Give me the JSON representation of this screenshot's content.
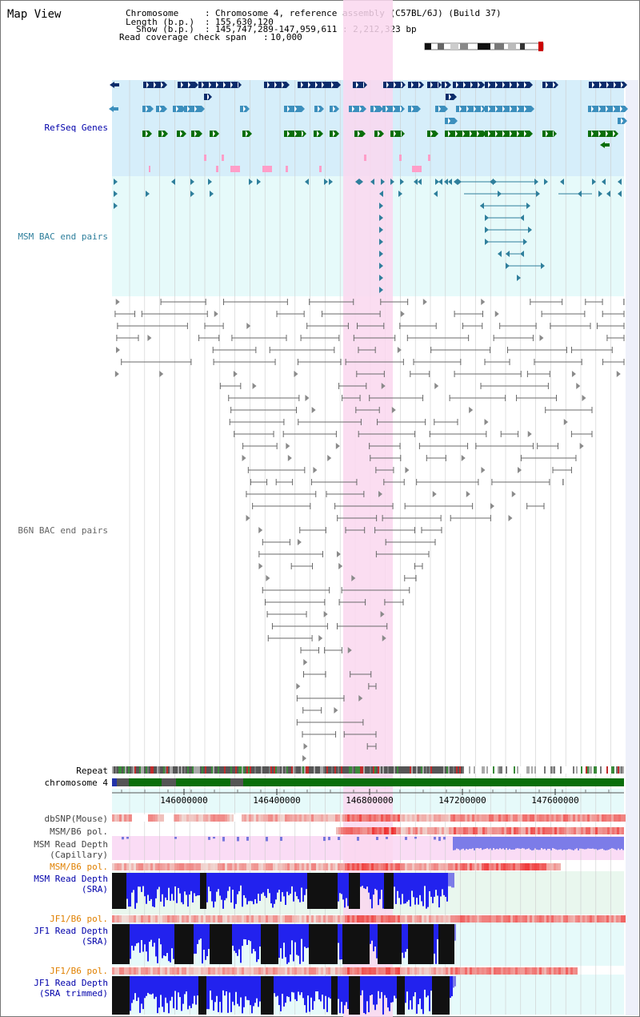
{
  "title": "Map View",
  "info": {
    "chromosome_key": "Chromosome",
    "chromosome_val": "Chromosome 4, reference assembly (C57BL/6J) (Build 37)",
    "length_key": "Length (b.p.)",
    "length_val": "155,630,120",
    "show_key": "Show (b.p.)",
    "show_val": "145,747,289-147,959,611 : 2,212,323 bp",
    "coverage_key": "Read coverage check span",
    "coverage_val": "10,000"
  },
  "tracks": {
    "refseq": "RefSeq Genes",
    "msm_bac": "MSM BAC end pairs",
    "b6n_bac": "B6N BAC end pairs",
    "repeat": "Repeat",
    "chromosome": "chromosome 4",
    "dbsnp": "dbSNP(Mouse)",
    "msm_b6_pol_1": "MSM/B6 pol.",
    "msm_read_cap_1": "MSM Read Depth",
    "msm_read_cap_2": "(Capillary)",
    "msm_b6_pol_2": "MSM/B6 pol.",
    "msm_read_sra_1": "MSM Read Depth",
    "msm_read_sra_2": "(SRA)",
    "jf1_b6_pol_1": "JF1/B6 pol.",
    "jf1_read_sra_1": "JF1 Read Depth",
    "jf1_read_sra_2": "(SRA)",
    "jf1_b6_pol_2": "JF1/B6 pol.",
    "jf1_read_trim_1": "JF1 Read Depth",
    "jf1_read_trim_2": "(SRA trimmed)"
  },
  "axis": {
    "ticks": [
      "146000000",
      "146400000",
      "146800000",
      "147200000",
      "147600000"
    ]
  },
  "colors": {
    "refseq_bg": "#d6eefa",
    "msm_bg": "#e6fafa",
    "highlight": "#fad7ef",
    "refseq_dark": "#0b2c6b",
    "refseq_mid": "#3c8fbd",
    "refseq_green": "#0a6e0a",
    "msm_blue": "#2f7f9c",
    "b6n_gray": "#6a6a6a",
    "depth_blue": "#2222ee",
    "pol_red": "#e03030",
    "label_blue": "#0000aa",
    "label_orange": "#e08000"
  }
}
